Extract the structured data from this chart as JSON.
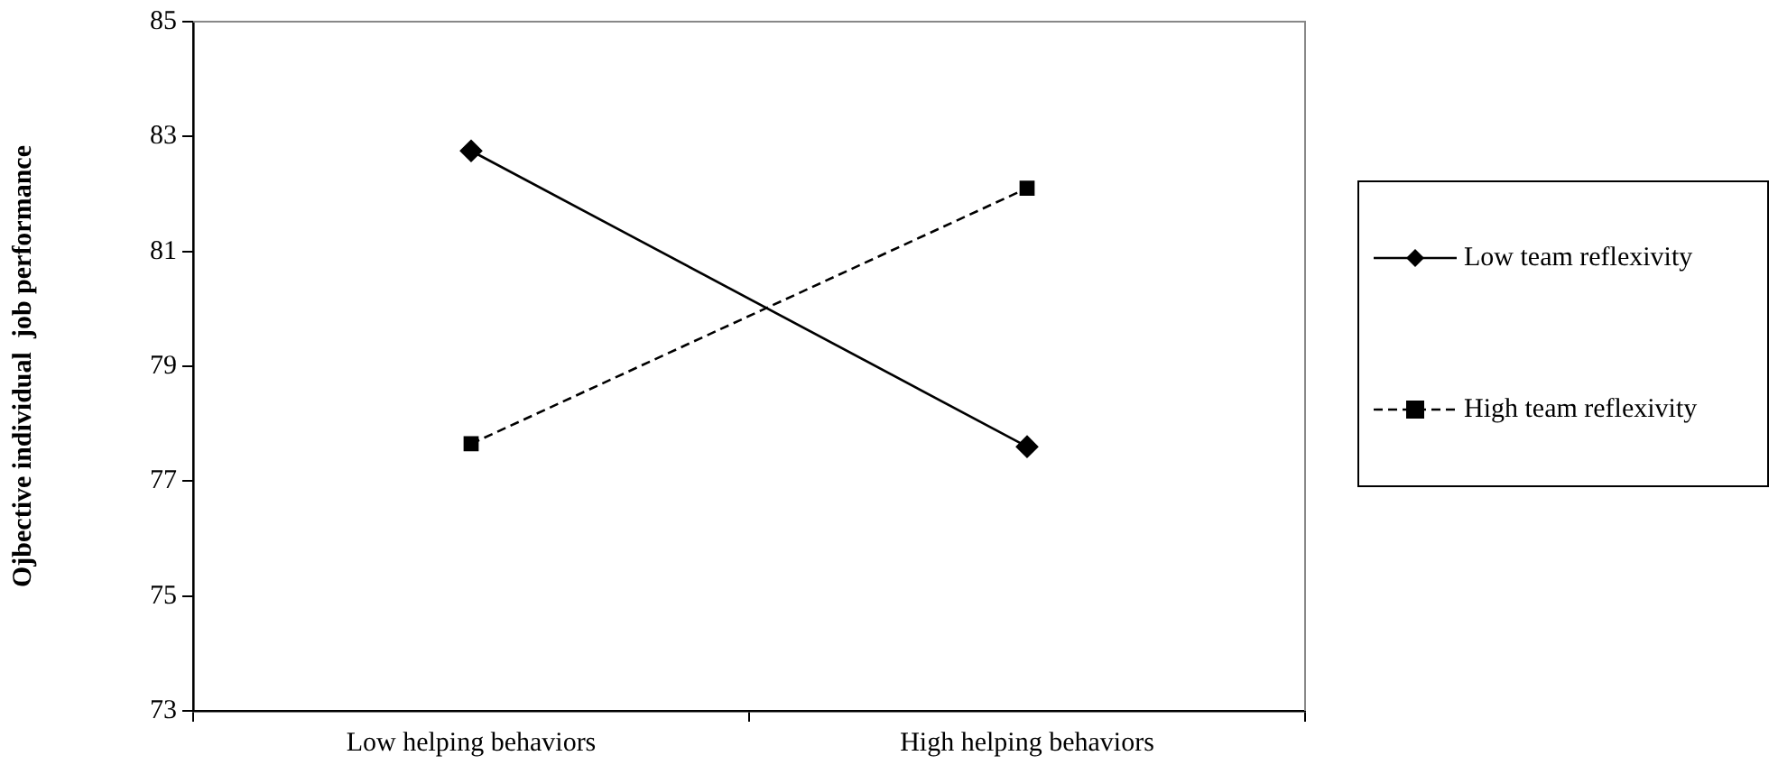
{
  "chart_data": {
    "type": "line",
    "ylabel": "Ojbective individual  job performance",
    "categories": [
      "Low helping behaviors",
      "High helping behaviors"
    ],
    "ylim": [
      73,
      85
    ],
    "yticks": [
      73,
      75,
      77,
      79,
      81,
      83,
      85
    ],
    "grid": false,
    "legend": "right",
    "series": [
      {
        "name": "Low team reflexivity",
        "color": "#000000",
        "values": [
          82.75,
          77.6
        ],
        "marker": "diamond",
        "line_style": "solid"
      },
      {
        "name": "High team reflexivity",
        "color": "#000000",
        "values": [
          77.65,
          82.1
        ],
        "marker": "square",
        "line_style": "dashed"
      }
    ]
  }
}
